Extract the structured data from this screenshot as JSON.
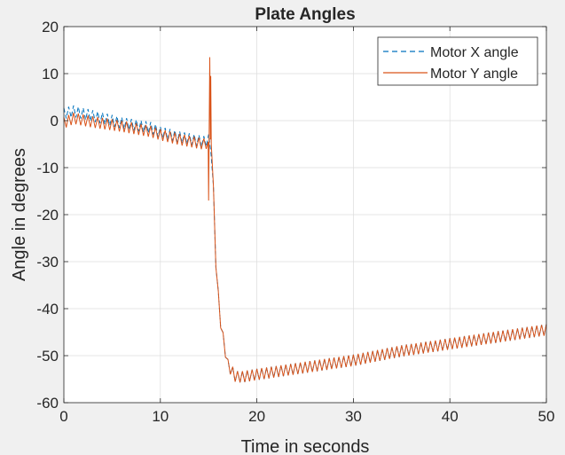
{
  "chart_data": {
    "type": "line",
    "title": "Plate Angles",
    "xlabel": "Time in seconds",
    "ylabel": "Angle in degrees",
    "xlim": [
      0,
      50
    ],
    "ylim": [
      -60,
      20
    ],
    "xticks": [
      0,
      10,
      20,
      30,
      40,
      50
    ],
    "yticks": [
      20,
      10,
      0,
      -10,
      -20,
      -30,
      -40,
      -50,
      -60
    ],
    "grid": true,
    "legend_position": "top-right",
    "series": [
      {
        "name": "Motor X angle",
        "color": "#0072BD",
        "style": "dashed",
        "keypoints": [
          [
            0,
            1.5
          ],
          [
            1,
            2.0
          ],
          [
            3,
            1.0
          ],
          [
            6,
            -0.5
          ],
          [
            9,
            -1.5
          ],
          [
            10,
            -2.5
          ],
          [
            12,
            -3.5
          ],
          [
            14.5,
            -4.5
          ],
          [
            15.2,
            -4.0
          ],
          [
            15.5,
            -15
          ],
          [
            15.8,
            -33
          ],
          [
            16.3,
            -44
          ],
          [
            17,
            -52
          ],
          [
            17.8,
            -54.5
          ],
          [
            18.5,
            -54.5
          ],
          [
            20,
            -54
          ],
          [
            25,
            -52.5
          ],
          [
            30,
            -51
          ],
          [
            35,
            -49
          ],
          [
            40,
            -47.5
          ],
          [
            45,
            -46
          ],
          [
            50,
            -44.5
          ]
        ],
        "oscillation_amplitude": 1.2
      },
      {
        "name": "Motor Y angle",
        "color": "#D95319",
        "style": "solid",
        "keypoints": [
          [
            0,
            -0.5
          ],
          [
            1,
            0.5
          ],
          [
            3,
            -0.3
          ],
          [
            6,
            -1.2
          ],
          [
            9,
            -2.3
          ],
          [
            10,
            -3.0
          ],
          [
            12,
            -4.0
          ],
          [
            14.5,
            -5.0
          ],
          [
            15.2,
            -4.5
          ],
          [
            15.5,
            -15
          ],
          [
            15.8,
            -33
          ],
          [
            16.3,
            -44
          ],
          [
            17,
            -52
          ],
          [
            17.8,
            -54.5
          ],
          [
            18.5,
            -54.5
          ],
          [
            20,
            -54
          ],
          [
            25,
            -52.5
          ],
          [
            30,
            -51
          ],
          [
            35,
            -49
          ],
          [
            40,
            -47.5
          ],
          [
            45,
            -46
          ],
          [
            50,
            -44.5
          ]
        ],
        "oscillation_amplitude": 1.2,
        "spike": [
          [
            14.95,
            -4.5
          ],
          [
            15.0,
            -17
          ],
          [
            15.05,
            -5
          ],
          [
            15.12,
            13.5
          ],
          [
            15.18,
            -4
          ],
          [
            15.22,
            9.5
          ],
          [
            15.28,
            -5
          ]
        ]
      }
    ]
  }
}
